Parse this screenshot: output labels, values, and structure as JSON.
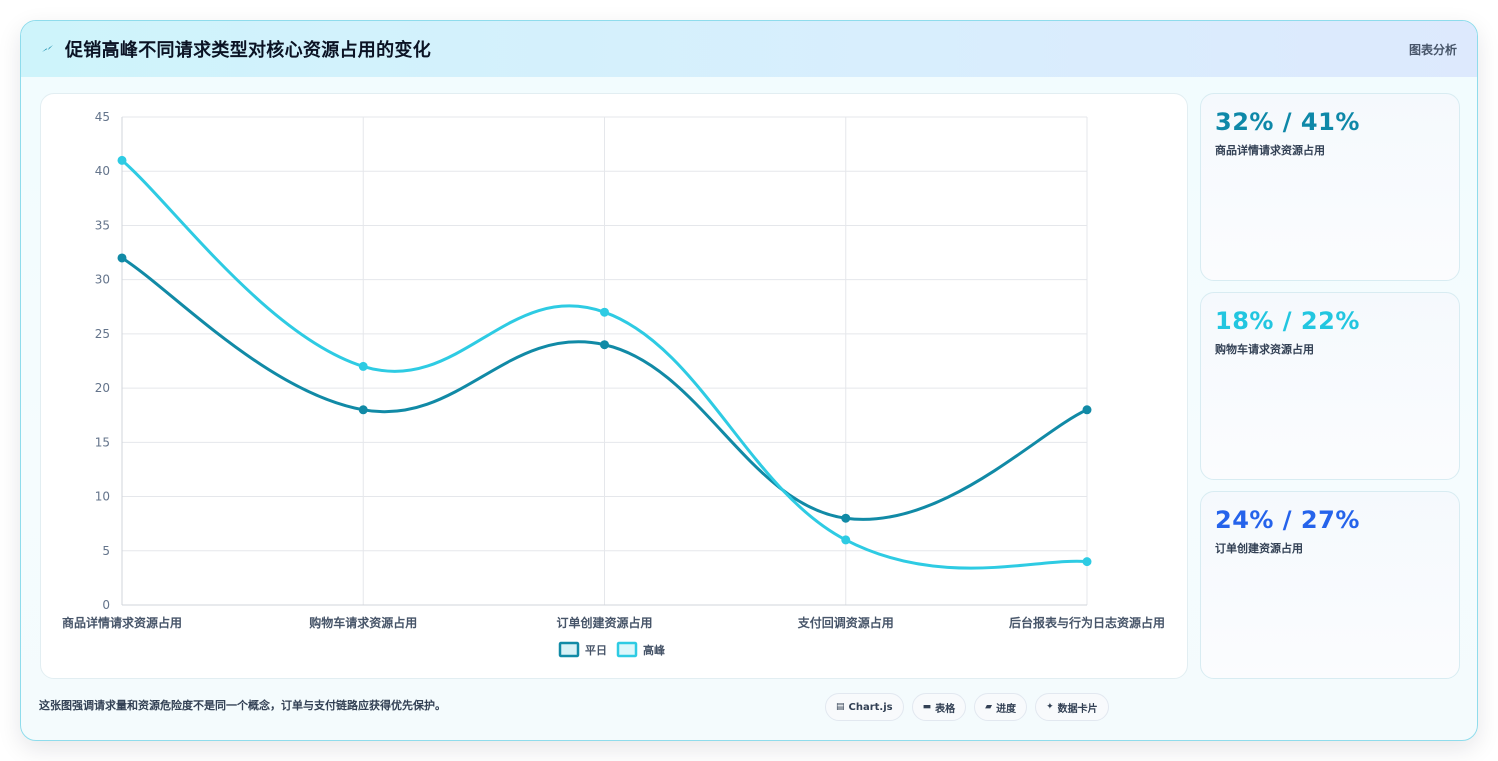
{
  "header": {
    "title": "促销高峰不同请求类型对核心资源占用的变化",
    "right_label": "图表分析"
  },
  "kpis": [
    {
      "value": "32% / 41%",
      "label": "商品详情请求资源占用",
      "color": "#0e88a8"
    },
    {
      "value": "18% / 22%",
      "label": "购物车请求资源占用",
      "color": "#22c6e0"
    },
    {
      "value": "24% / 27%",
      "label": "订单创建资源占用",
      "color": "#2563eb"
    }
  ],
  "footer": {
    "note": "这张图强调请求量和资源危险度不是同一个概念，订单与支付链路应获得优先保护。",
    "chips": [
      {
        "icon": "chart-icon",
        "glyph": "▤",
        "label": "Chart.js"
      },
      {
        "icon": "table-icon",
        "glyph": "▬",
        "label": "表格"
      },
      {
        "icon": "progress-icon",
        "glyph": "▰",
        "label": "进度"
      },
      {
        "icon": "card-icon",
        "glyph": "✦",
        "label": "数据卡片"
      }
    ]
  },
  "chart_data": {
    "type": "line",
    "categories": [
      "商品详情请求资源占用",
      "购物车请求资源占用",
      "订单创建资源占用",
      "支付回调资源占用",
      "后台报表与行为日志资源占用"
    ],
    "series": [
      {
        "name": "平日",
        "values": [
          32,
          18,
          24,
          8,
          18
        ],
        "color": "#118aa6"
      },
      {
        "name": "高峰",
        "values": [
          41,
          22,
          27,
          6,
          4
        ],
        "color": "#2ecbe3"
      }
    ],
    "ylim": [
      0,
      45
    ],
    "yticks": [
      0,
      5,
      10,
      15,
      20,
      25,
      30,
      35,
      40,
      45
    ],
    "grid": true,
    "legend": "bottom"
  }
}
